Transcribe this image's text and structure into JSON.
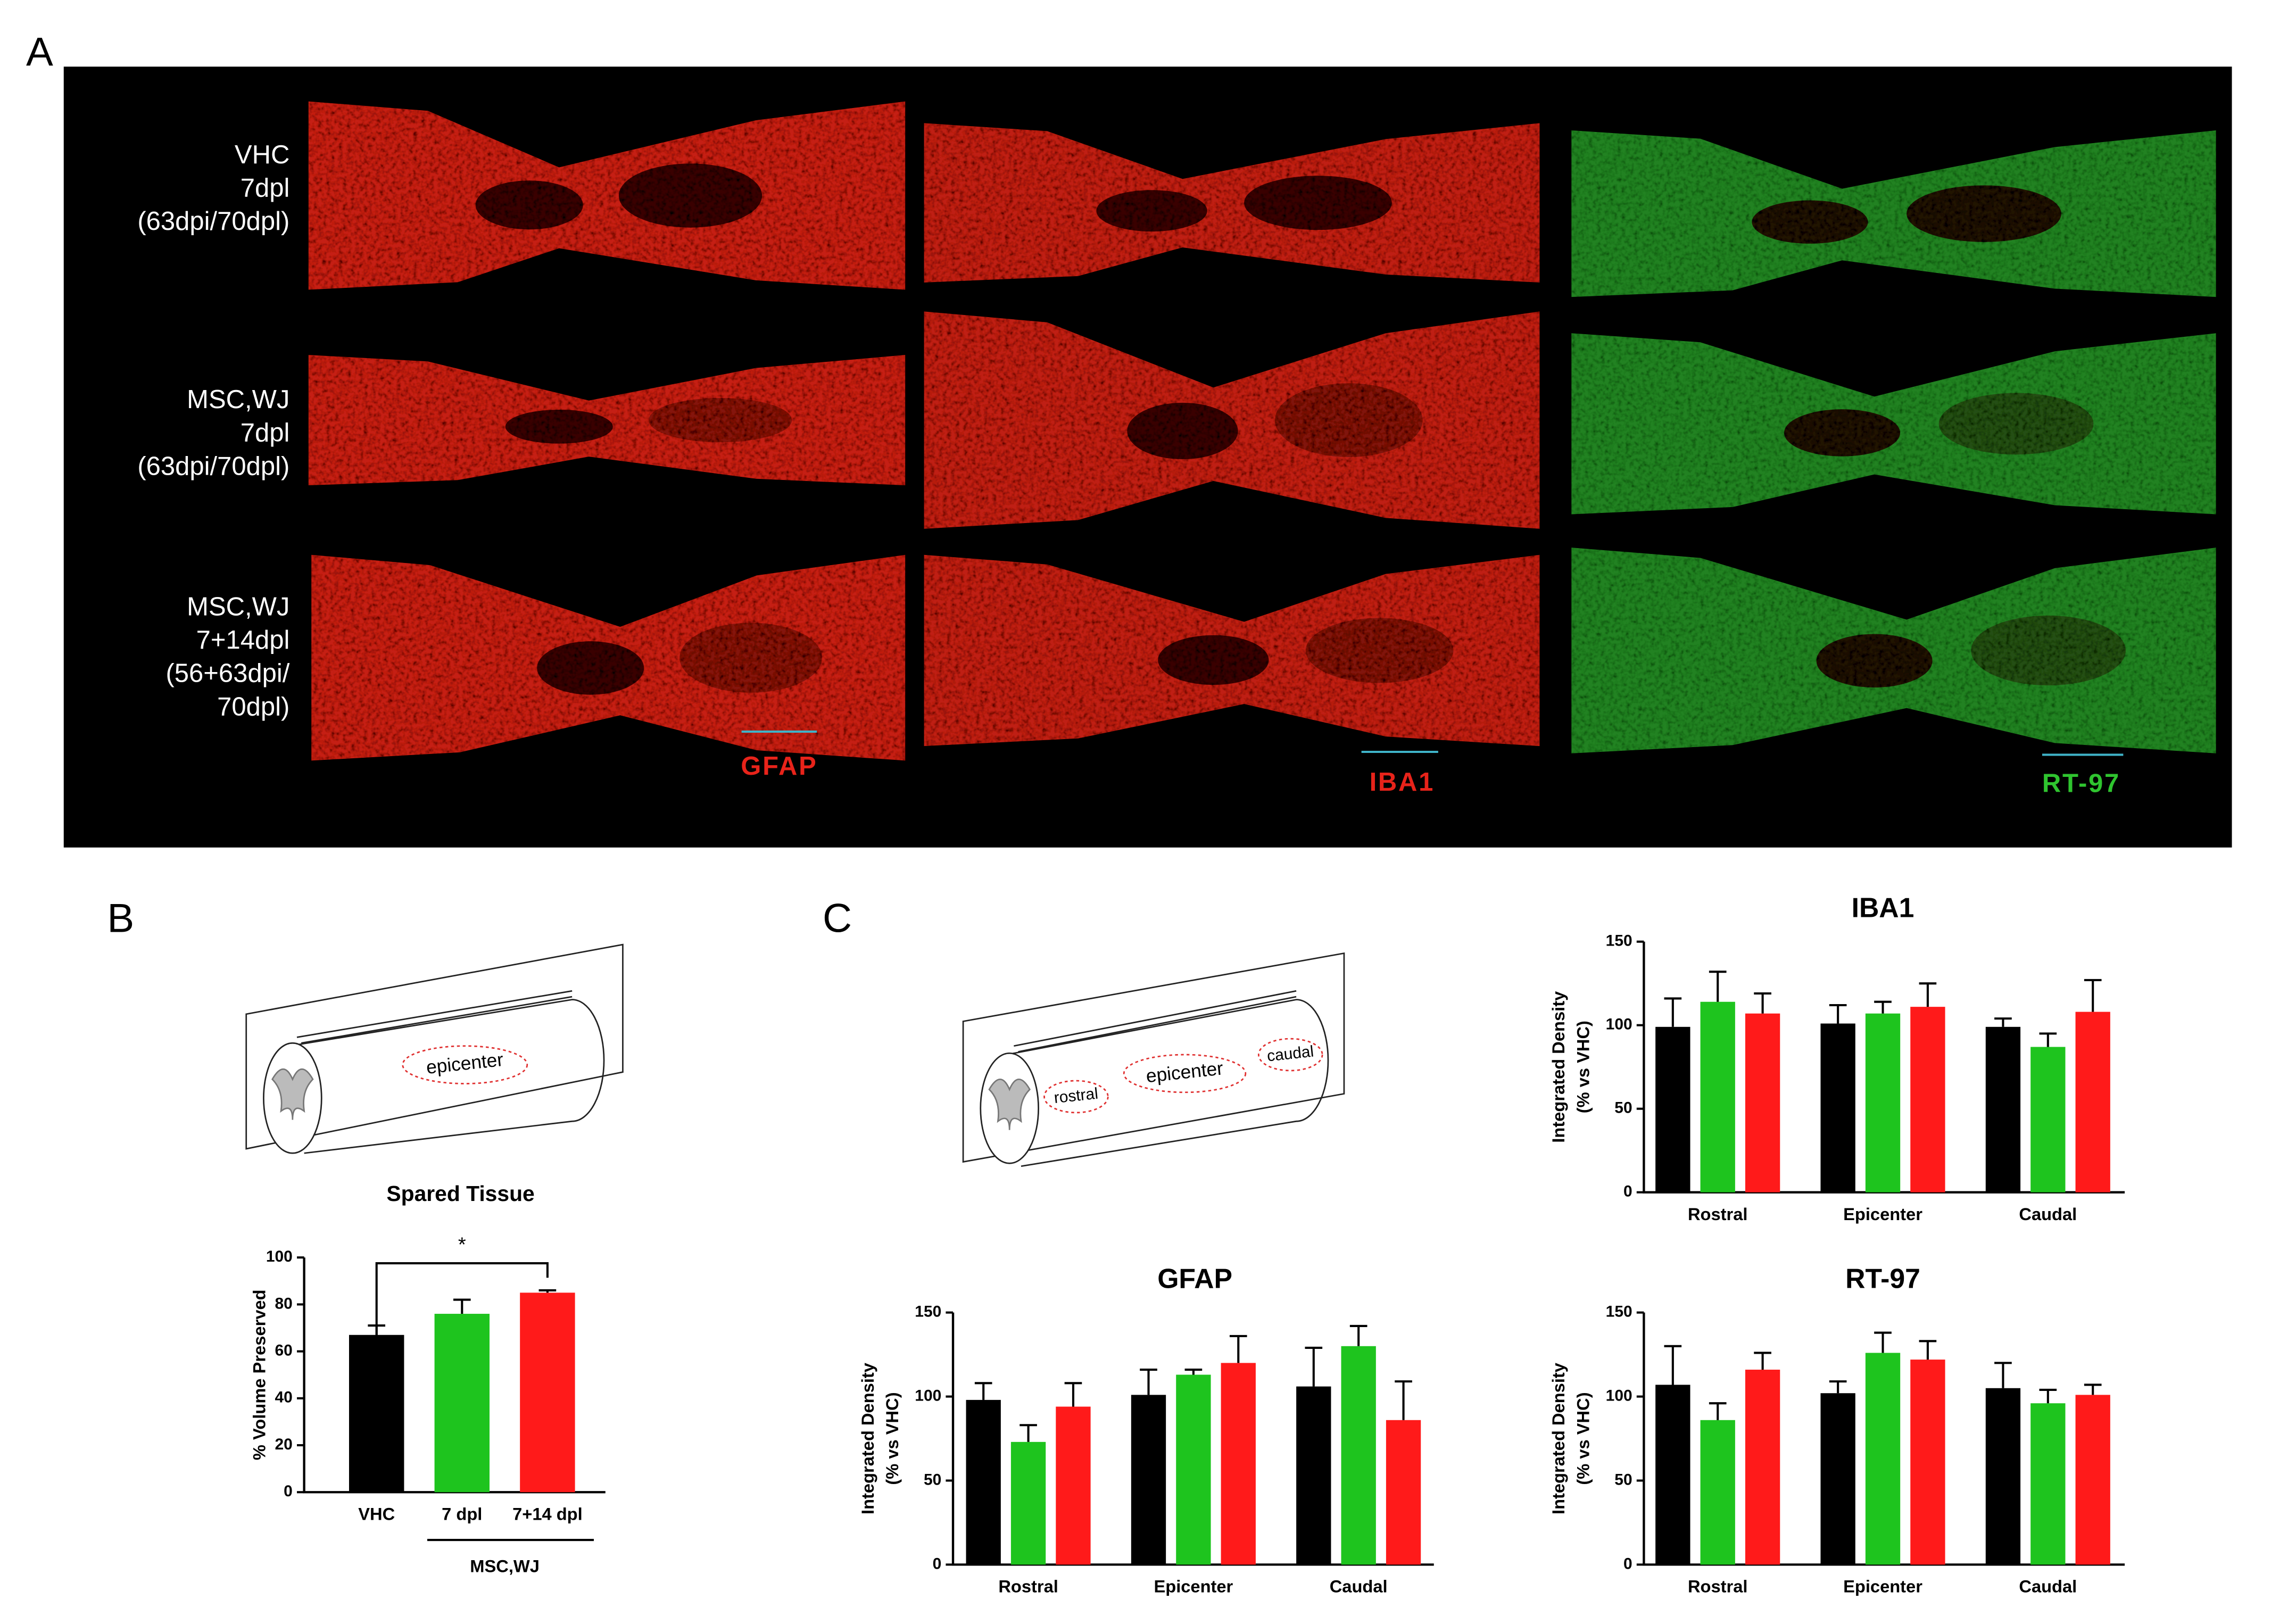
{
  "panels": {
    "a": "A",
    "b": "B",
    "c": "C"
  },
  "images": {
    "rows": [
      [
        "VHC",
        "7dpl",
        "(63dpi/70dpl)"
      ],
      [
        "MSC,WJ",
        "7dpl",
        "(63dpi/70dpl)"
      ],
      [
        "MSC,WJ",
        "7+14dpl",
        "(56+63dpi/",
        "70dpl)"
      ]
    ],
    "stains": [
      "GFAP",
      "IBA1",
      "RT-97"
    ]
  },
  "diagrams": {
    "b_label": "epicenter",
    "c_labels": [
      "rostral",
      "epicenter",
      "caudal"
    ]
  },
  "chart_data": [
    {
      "type": "bar",
      "title": "Spared Tissue",
      "ylabel": "% Volume Preserved",
      "categories": [
        "VHC",
        "7 dpl",
        "7+14 dpl"
      ],
      "values": [
        67,
        76,
        85
      ],
      "errors": [
        4,
        6,
        1
      ],
      "colors": [
        "#000000",
        "#1ec41e",
        "#ff1a1a"
      ],
      "group_label": "MSC,WJ",
      "annotation": "*",
      "ylim": [
        0,
        100
      ],
      "yticks": [
        0,
        20,
        40,
        60,
        80,
        100
      ]
    },
    {
      "type": "bar",
      "title": "IBA1",
      "ylabel": [
        "Integrated Density",
        "(% vs VHC)"
      ],
      "categories": [
        "Rostral",
        "Epicenter",
        "Caudal"
      ],
      "series": [
        {
          "color": "#000000",
          "values": [
            99,
            101,
            99
          ],
          "errors": [
            17,
            11,
            5
          ]
        },
        {
          "color": "#1ec41e",
          "values": [
            114,
            107,
            87
          ],
          "errors": [
            18,
            7,
            8
          ]
        },
        {
          "color": "#ff1a1a",
          "values": [
            107,
            111,
            108
          ],
          "errors": [
            12,
            14,
            19
          ]
        }
      ],
      "ylim": [
        0,
        150
      ],
      "yticks": [
        0,
        50,
        100,
        150
      ]
    },
    {
      "type": "bar",
      "title": "GFAP",
      "ylabel": [
        "Integrated Density",
        "(% vs VHC)"
      ],
      "categories": [
        "Rostral",
        "Epicenter",
        "Caudal"
      ],
      "series": [
        {
          "color": "#000000",
          "values": [
            98,
            101,
            106
          ],
          "errors": [
            10,
            15,
            23
          ]
        },
        {
          "color": "#1ec41e",
          "values": [
            73,
            113,
            130
          ],
          "errors": [
            10,
            3,
            12
          ]
        },
        {
          "color": "#ff1a1a",
          "values": [
            94,
            120,
            86
          ],
          "errors": [
            14,
            16,
            23
          ]
        }
      ],
      "ylim": [
        0,
        150
      ],
      "yticks": [
        0,
        50,
        100,
        150
      ]
    },
    {
      "type": "bar",
      "title": "RT-97",
      "ylabel": [
        "Integrated Density",
        "(% vs VHC)"
      ],
      "categories": [
        "Rostral",
        "Epicenter",
        "Caudal"
      ],
      "series": [
        {
          "color": "#000000",
          "values": [
            107,
            102,
            105
          ],
          "errors": [
            23,
            7,
            15
          ]
        },
        {
          "color": "#1ec41e",
          "values": [
            86,
            126,
            96
          ],
          "errors": [
            10,
            12,
            8
          ]
        },
        {
          "color": "#ff1a1a",
          "values": [
            116,
            122,
            101
          ],
          "errors": [
            10,
            11,
            6
          ]
        }
      ],
      "ylim": [
        0,
        150
      ],
      "yticks": [
        0,
        50,
        100,
        150
      ]
    }
  ]
}
